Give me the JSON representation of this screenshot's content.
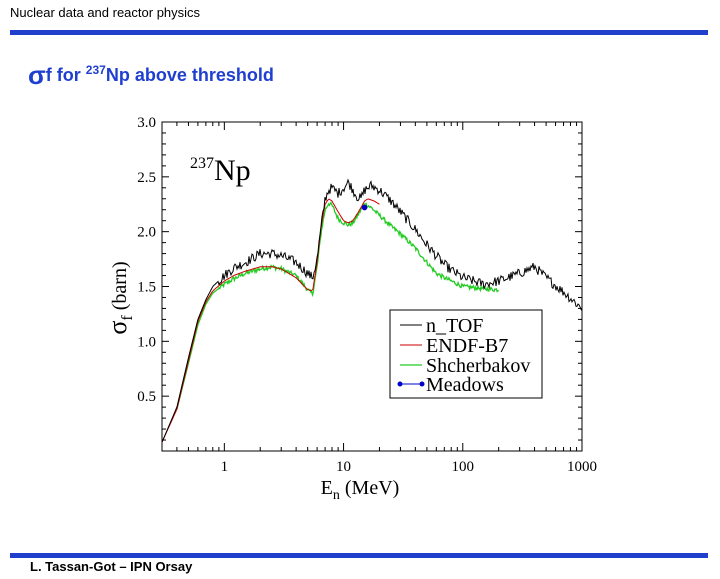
{
  "header": {
    "title": "Nuclear data and reactor physics"
  },
  "slide": {
    "title_symbol": "σ",
    "title_sub": "f",
    "title_pre": " for ",
    "title_sup": "237",
    "title_post": "Np above threshold"
  },
  "footer": {
    "text": "L. Tassan-Got – IPN Orsay"
  },
  "colors": {
    "accent": "#1f3fcc",
    "ntof": "#000000",
    "endf": "#cc0000",
    "shch": "#22cc22",
    "meadows": "#0000cc"
  },
  "chart_data": {
    "type": "line",
    "annotation": {
      "sup": "237",
      "text": "Np"
    },
    "xlabel": {
      "main": "E",
      "sub": "n",
      "rest": " (MeV)"
    },
    "ylabel": {
      "main": "σ",
      "sub": "f",
      "rest": " (barn)"
    },
    "xscale": "log",
    "xlim": [
      0.3,
      1000
    ],
    "ylim": [
      0.0,
      3.0
    ],
    "x_ticks": [
      1,
      10,
      100,
      1000
    ],
    "x_tick_labels": [
      "1",
      "10",
      "100",
      "1000"
    ],
    "y_ticks": [
      0.5,
      1.0,
      1.5,
      2.0,
      2.5,
      3.0
    ],
    "y_tick_labels": [
      "0.5",
      "1.0",
      "1.5",
      "2.0",
      "2.5",
      "3.0"
    ],
    "legend_position": "lower-right",
    "series": [
      {
        "name": "n_TOF",
        "color": "#000000",
        "noise": 0.045,
        "x": [
          0.3,
          0.4,
          0.5,
          0.6,
          0.7,
          0.8,
          1.0,
          1.2,
          1.5,
          2.0,
          2.5,
          3.0,
          4.0,
          5.0,
          5.5,
          6.0,
          6.5,
          7.0,
          7.5,
          8.0,
          9.0,
          10.0,
          11.0,
          12.0,
          13.0,
          14.0,
          15.0,
          17.0,
          20.0,
          25.0,
          30.0,
          40.0,
          50.0,
          60.0,
          70.0,
          80.0,
          100.0,
          150.0,
          200.0,
          300.0,
          400.0,
          500.0,
          700.0,
          1000.0
        ],
        "y": [
          0.08,
          0.4,
          0.85,
          1.2,
          1.38,
          1.5,
          1.6,
          1.67,
          1.72,
          1.8,
          1.8,
          1.78,
          1.72,
          1.62,
          1.58,
          1.75,
          2.05,
          2.3,
          2.38,
          2.4,
          2.35,
          2.4,
          2.45,
          2.38,
          2.32,
          2.3,
          2.38,
          2.42,
          2.38,
          2.28,
          2.18,
          2.02,
          1.88,
          1.78,
          1.7,
          1.65,
          1.58,
          1.52,
          1.55,
          1.62,
          1.68,
          1.58,
          1.45,
          1.3
        ]
      },
      {
        "name": "ENDF-B7",
        "color": "#cc0000",
        "noise": 0.0,
        "x": [
          0.3,
          0.4,
          0.5,
          0.6,
          0.7,
          0.8,
          1.0,
          1.2,
          1.5,
          2.0,
          2.5,
          3.0,
          4.0,
          5.0,
          5.5,
          6.0,
          6.5,
          7.0,
          7.5,
          8.0,
          9.0,
          10.0,
          11.0,
          12.0,
          13.0,
          14.0,
          15.0,
          16.0,
          18.0,
          20.0
        ],
        "y": [
          0.08,
          0.38,
          0.82,
          1.18,
          1.36,
          1.46,
          1.55,
          1.6,
          1.64,
          1.68,
          1.68,
          1.66,
          1.58,
          1.47,
          1.46,
          1.72,
          2.05,
          2.25,
          2.3,
          2.28,
          2.18,
          2.1,
          2.08,
          2.1,
          2.16,
          2.22,
          2.28,
          2.3,
          2.28,
          2.25
        ]
      },
      {
        "name": "Shcherbakov",
        "color": "#22cc22",
        "noise": 0.02,
        "x": [
          0.4,
          0.5,
          0.6,
          0.7,
          0.8,
          1.0,
          1.2,
          1.5,
          2.0,
          2.5,
          3.0,
          4.0,
          5.0,
          5.5,
          6.0,
          6.5,
          7.0,
          7.5,
          8.0,
          9.0,
          10.0,
          11.0,
          12.0,
          13.0,
          14.0,
          15.0,
          17.0,
          20.0,
          25.0,
          30.0,
          40.0,
          50.0,
          60.0,
          70.0,
          80.0,
          100.0,
          150.0,
          200.0
        ],
        "y": [
          0.38,
          0.8,
          1.15,
          1.34,
          1.44,
          1.52,
          1.57,
          1.62,
          1.66,
          1.68,
          1.66,
          1.6,
          1.47,
          1.43,
          1.68,
          2.0,
          2.2,
          2.26,
          2.24,
          2.12,
          2.08,
          2.06,
          2.08,
          2.14,
          2.2,
          2.26,
          2.22,
          2.15,
          2.05,
          1.98,
          1.85,
          1.72,
          1.62,
          1.58,
          1.55,
          1.5,
          1.48,
          1.47
        ]
      },
      {
        "name": "Meadows",
        "color": "#0000cc",
        "x": [
          15.0
        ],
        "y": [
          2.22
        ]
      }
    ]
  }
}
